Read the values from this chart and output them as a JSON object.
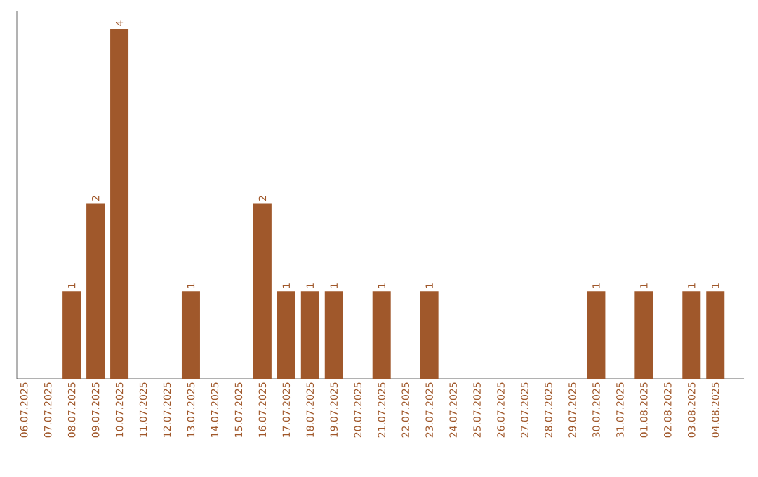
{
  "chart_data": {
    "type": "bar",
    "categories": [
      "06.07.2025",
      "07.07.2025",
      "08.07.2025",
      "09.07.2025",
      "10.07.2025",
      "11.07.2025",
      "12.07.2025",
      "13.07.2025",
      "14.07.2025",
      "15.07.2025",
      "16.07.2025",
      "17.07.2025",
      "18.07.2025",
      "19.07.2025",
      "20.07.2025",
      "21.07.2025",
      "22.07.2025",
      "23.07.2025",
      "24.07.2025",
      "25.07.2025",
      "26.07.2025",
      "27.07.2025",
      "28.07.2025",
      "29.07.2025",
      "30.07.2025",
      "31.07.2025",
      "01.08.2025",
      "02.08.2025",
      "03.08.2025",
      "04.08.2025"
    ],
    "values": [
      null,
      null,
      1,
      2,
      4,
      null,
      null,
      1,
      null,
      null,
      2,
      1,
      1,
      1,
      null,
      1,
      null,
      1,
      null,
      null,
      null,
      null,
      null,
      null,
      1,
      null,
      1,
      null,
      1,
      1
    ],
    "color": "#a0582b",
    "data_labels": true
  }
}
